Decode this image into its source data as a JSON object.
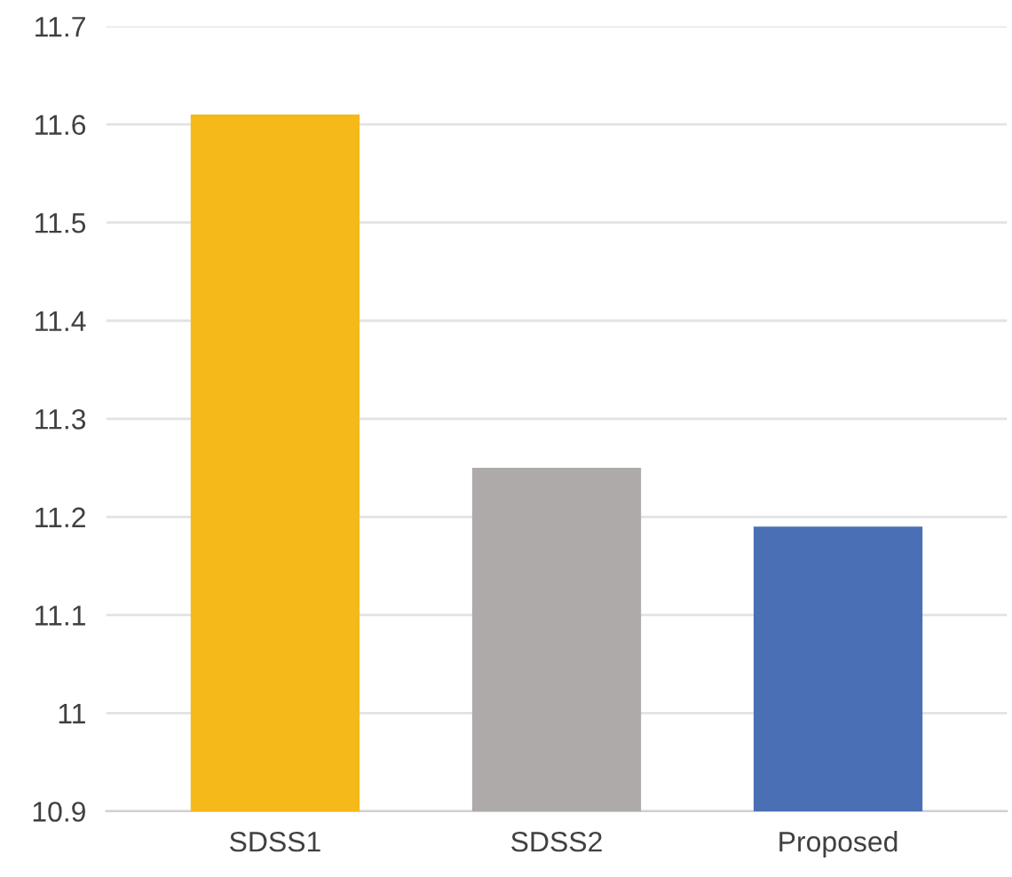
{
  "chart_data": {
    "type": "bar",
    "categories": [
      "SDSS1",
      "SDSS2",
      "Proposed"
    ],
    "values": [
      11.61,
      11.25,
      11.19
    ],
    "colors": [
      "#f5b919",
      "#aeaaa9",
      "#4a6fb5"
    ],
    "ylim": [
      10.9,
      11.7
    ],
    "yticks": [
      {
        "value": 10.9,
        "label": "10.9"
      },
      {
        "value": 11.0,
        "label": "11"
      },
      {
        "value": 11.1,
        "label": "11.1"
      },
      {
        "value": 11.2,
        "label": "11.2"
      },
      {
        "value": 11.3,
        "label": "11.3"
      },
      {
        "value": 11.4,
        "label": "11.4"
      },
      {
        "value": 11.5,
        "label": "11.5"
      },
      {
        "value": 11.6,
        "label": "11.6"
      },
      {
        "value": 11.7,
        "label": "11.7"
      }
    ],
    "grid": "y"
  }
}
